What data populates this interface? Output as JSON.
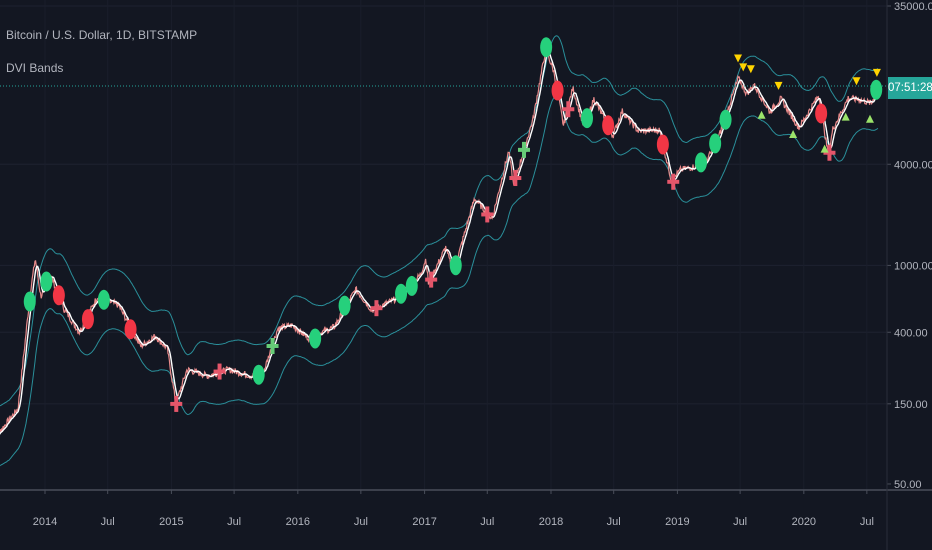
{
  "header": {
    "symbol_title": "Bitcoin / U.S. Dollar, 1D, BITSTAMP",
    "indicator": "DVI Bands"
  },
  "price_axis": {
    "countdown": "07:51:28"
  },
  "colors": {
    "background": "#131722",
    "price": "#e88a8a",
    "ma": "#ffffff",
    "band": "#2a8f9a",
    "bull": "#26d07c",
    "bear": "#f23645",
    "signal": "#ffd400",
    "countdown_bg": "#26a69a"
  },
  "chart_data": {
    "type": "line",
    "title": "",
    "yscale": "log",
    "ylim": [
      50,
      35000
    ],
    "y_ticks": [
      "35000.00",
      "4000.00",
      "1000.00",
      "400.00",
      "150.00",
      "50.00"
    ],
    "x_ticks": [
      {
        "label": "2014",
        "date": "2014-01-01"
      },
      {
        "label": "Jul",
        "date": "2014-07-01"
      },
      {
        "label": "2015",
        "date": "2015-01-01"
      },
      {
        "label": "Jul",
        "date": "2015-07-01"
      },
      {
        "label": "2016",
        "date": "2016-01-01"
      },
      {
        "label": "Jul",
        "date": "2016-07-01"
      },
      {
        "label": "2017",
        "date": "2017-01-01"
      },
      {
        "label": "Jul",
        "date": "2017-07-01"
      },
      {
        "label": "2018",
        "date": "2018-01-01"
      },
      {
        "label": "Jul",
        "date": "2018-07-01"
      },
      {
        "label": "2019",
        "date": "2019-01-01"
      },
      {
        "label": "Jul",
        "date": "2019-07-01"
      },
      {
        "label": "2020",
        "date": "2020-01-01"
      },
      {
        "label": "Jul",
        "date": "2020-07-01"
      }
    ],
    "grid": true,
    "series": [
      {
        "points": [
          [
            "2013-08-01",
            90
          ],
          [
            "2013-10-15",
            140
          ],
          [
            "2013-11-20",
            700
          ],
          [
            "2013-12-04",
            1100
          ],
          [
            "2013-12-20",
            650
          ],
          [
            "2014-01-15",
            900
          ],
          [
            "2014-02-25",
            550
          ],
          [
            "2014-04-10",
            400
          ],
          [
            "2014-06-01",
            650
          ],
          [
            "2014-08-01",
            580
          ],
          [
            "2014-10-05",
            330
          ],
          [
            "2014-11-15",
            380
          ],
          [
            "2014-12-20",
            320
          ],
          [
            "2015-01-14",
            150
          ],
          [
            "2015-02-15",
            240
          ],
          [
            "2015-04-15",
            220
          ],
          [
            "2015-06-15",
            240
          ],
          [
            "2015-08-20",
            220
          ],
          [
            "2015-09-25",
            235
          ],
          [
            "2015-11-04",
            420
          ],
          [
            "2015-12-15",
            440
          ],
          [
            "2016-02-01",
            370
          ],
          [
            "2016-04-15",
            430
          ],
          [
            "2016-06-16",
            720
          ],
          [
            "2016-08-02",
            540
          ],
          [
            "2016-10-15",
            640
          ],
          [
            "2016-12-20",
            880
          ],
          [
            "2017-01-05",
            1100
          ],
          [
            "2017-01-12",
            780
          ],
          [
            "2017-03-03",
            1280
          ],
          [
            "2017-03-25",
            900
          ],
          [
            "2017-05-25",
            2500
          ],
          [
            "2017-07-15",
            1900
          ],
          [
            "2017-09-01",
            4800
          ],
          [
            "2017-09-15",
            3000
          ],
          [
            "2017-11-10",
            7400
          ],
          [
            "2017-12-17",
            19500
          ],
          [
            "2018-01-10",
            14000
          ],
          [
            "2018-02-06",
            6800
          ],
          [
            "2018-03-05",
            11400
          ],
          [
            "2018-04-06",
            6600
          ],
          [
            "2018-05-05",
            9800
          ],
          [
            "2018-06-29",
            5900
          ],
          [
            "2018-07-25",
            8300
          ],
          [
            "2018-09-10",
            6300
          ],
          [
            "2018-11-10",
            6400
          ],
          [
            "2018-12-15",
            3200
          ],
          [
            "2019-01-10",
            3700
          ],
          [
            "2019-03-20",
            4000
          ],
          [
            "2019-04-25",
            5400
          ],
          [
            "2019-06-26",
            13000
          ],
          [
            "2019-07-20",
            10500
          ],
          [
            "2019-08-10",
            11900
          ],
          [
            "2019-09-25",
            8200
          ],
          [
            "2019-10-26",
            9800
          ],
          [
            "2019-12-18",
            6600
          ],
          [
            "2020-02-13",
            10300
          ],
          [
            "2020-03-12",
            4500
          ],
          [
            "2020-03-25",
            6500
          ],
          [
            "2020-05-08",
            9900
          ],
          [
            "2020-06-10",
            9700
          ],
          [
            "2020-07-15",
            9200
          ],
          [
            "2020-07-28",
            11200
          ],
          [
            "2020-08-02",
            11700
          ]
        ]
      }
    ],
    "markers": [
      {
        "date": "2013-11-18",
        "type": "bull-circle"
      },
      {
        "date": "2014-01-05",
        "type": "bull-circle"
      },
      {
        "date": "2014-02-10",
        "type": "bear-circle"
      },
      {
        "date": "2014-05-05",
        "type": "bear-circle"
      },
      {
        "date": "2014-06-20",
        "type": "bull-circle"
      },
      {
        "date": "2014-09-05",
        "type": "bear-circle"
      },
      {
        "date": "2015-01-15",
        "type": "bear-cross"
      },
      {
        "date": "2015-05-20",
        "type": "bear-cross"
      },
      {
        "date": "2015-09-10",
        "type": "bull-circle"
      },
      {
        "date": "2015-10-20",
        "type": "bull-cross"
      },
      {
        "date": "2016-02-20",
        "type": "bull-circle"
      },
      {
        "date": "2016-05-15",
        "type": "bull-circle"
      },
      {
        "date": "2016-08-15",
        "type": "bear-cross"
      },
      {
        "date": "2016-10-25",
        "type": "bull-circle"
      },
      {
        "date": "2016-11-25",
        "type": "bull-circle"
      },
      {
        "date": "2017-01-20",
        "type": "bear-cross"
      },
      {
        "date": "2017-04-01",
        "type": "bull-circle"
      },
      {
        "date": "2017-07-01",
        "type": "bear-cross"
      },
      {
        "date": "2017-09-20",
        "type": "bear-cross"
      },
      {
        "date": "2017-10-15",
        "type": "bull-cross"
      },
      {
        "date": "2017-12-18",
        "type": "bull-circle"
      },
      {
        "date": "2018-01-20",
        "type": "bear-circle"
      },
      {
        "date": "2018-02-20",
        "type": "bear-cross"
      },
      {
        "date": "2018-04-15",
        "type": "bull-circle"
      },
      {
        "date": "2018-06-15",
        "type": "bear-circle"
      },
      {
        "date": "2018-11-20",
        "type": "bear-circle"
      },
      {
        "date": "2018-12-20",
        "type": "bear-cross"
      },
      {
        "date": "2019-03-10",
        "type": "bull-circle"
      },
      {
        "date": "2019-04-20",
        "type": "bull-circle"
      },
      {
        "date": "2019-05-20",
        "type": "bull-circle"
      },
      {
        "date": "2019-06-25",
        "type": "signal-down"
      },
      {
        "date": "2019-07-10",
        "type": "signal-down"
      },
      {
        "date": "2019-08-01",
        "type": "signal-down"
      },
      {
        "date": "2019-09-01",
        "type": "signal-up"
      },
      {
        "date": "2019-10-20",
        "type": "signal-down"
      },
      {
        "date": "2019-12-01",
        "type": "signal-up"
      },
      {
        "date": "2020-02-20",
        "type": "bear-circle"
      },
      {
        "date": "2020-03-15",
        "type": "bear-cross"
      },
      {
        "date": "2020-03-01",
        "type": "signal-up"
      },
      {
        "date": "2020-05-01",
        "type": "signal-up"
      },
      {
        "date": "2020-06-01",
        "type": "signal-down"
      },
      {
        "date": "2020-07-10",
        "type": "signal-up"
      },
      {
        "date": "2020-07-28",
        "type": "bull-circle"
      },
      {
        "date": "2020-07-30",
        "type": "signal-down"
      }
    ],
    "last_price_line": 11700
  }
}
